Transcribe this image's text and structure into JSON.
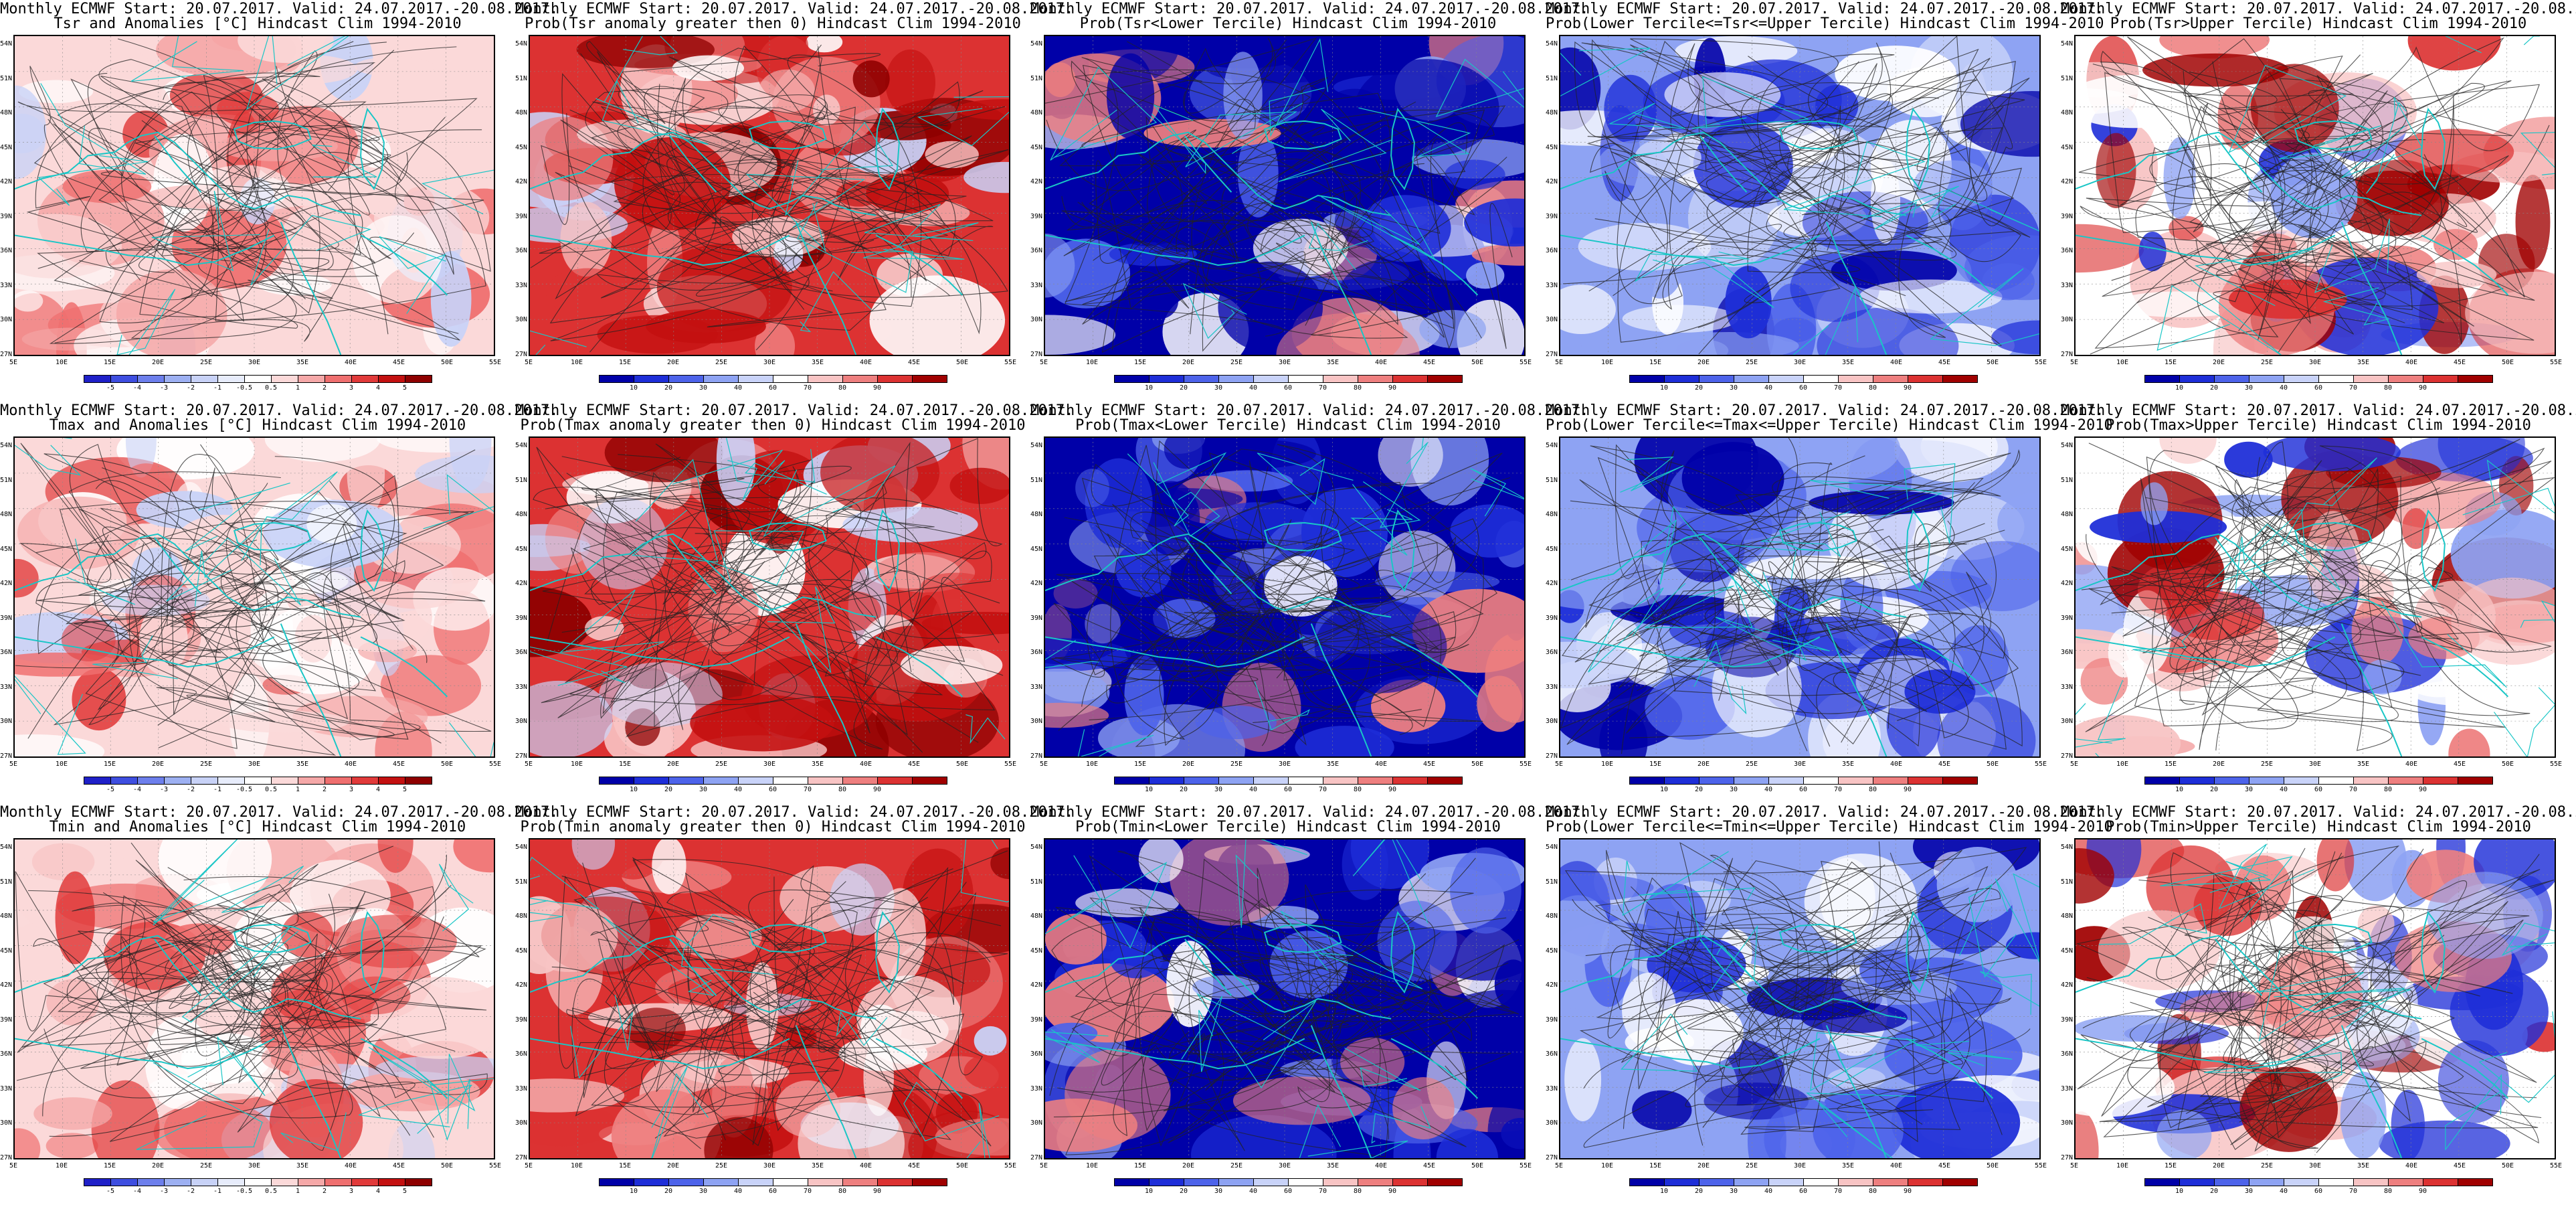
{
  "start_valid": "Monthly ECMWF Start: 20.07.2017. Valid: 24.07.2017.-20.08.2017.",
  "lat_labels": [
    "54N",
    "51N",
    "48N",
    "45N",
    "42N",
    "39N",
    "36N",
    "33N",
    "30N",
    "27N"
  ],
  "lon_labels": [
    "5E",
    "10E",
    "15E",
    "20E",
    "25E",
    "30E",
    "35E",
    "40E",
    "45E",
    "50E",
    "55E"
  ],
  "colorbars": {
    "anom": {
      "ticks": [
        "-5",
        "-4",
        "-3",
        "-2",
        "-1",
        "-0.5",
        "0.5",
        "1",
        "2",
        "3",
        "4",
        "5"
      ],
      "colors": [
        "#1f20c8",
        "#3e4ee0",
        "#6d7fec",
        "#9db0f2",
        "#c8d2f7",
        "#e7ecfb",
        "#ffffff",
        "#fbd9d9",
        "#f5a8a8",
        "#ef6f6f",
        "#e13a3a",
        "#c31010",
        "#8e0000"
      ]
    },
    "prob": {
      "ticks": [
        "10",
        "20",
        "30",
        "40",
        "60",
        "70",
        "80",
        "90"
      ],
      "colors": [
        "#0000a8",
        "#1e2ed8",
        "#4d63ea",
        "#8ea3f3",
        "#c9d3f9",
        "#ffffff",
        "#f8c4c4",
        "#ee7f7f",
        "#dc3232",
        "#a00000"
      ]
    }
  },
  "panels": [
    {
      "id": "r1c1",
      "title": "Tsr and Anomalies [°C] Hindcast Clim 1994-2010",
      "cbar": "anom",
      "fill": "anom"
    },
    {
      "id": "r1c2",
      "title": "Prob(Tsr anomaly greater then 0) Hindcast Clim 1994-2010",
      "cbar": "prob",
      "fill": "red"
    },
    {
      "id": "r1c3",
      "title": "Prob(Tsr<Lower Tercile) Hindcast Clim 1994-2010",
      "cbar": "prob",
      "fill": "blue"
    },
    {
      "id": "r1c4",
      "title": "Prob(Lower Tercile<=Tsr<=Upper Tercile) Hindcast Clim 1994-2010",
      "cbar": "prob",
      "fill": "mid"
    },
    {
      "id": "r1c5",
      "title": "Prob(Tsr>Upper Tercile) Hindcast Clim 1994-2010",
      "cbar": "prob",
      "fill": "upper"
    },
    {
      "id": "r2c1",
      "title": "Tmax and Anomalies [°C] Hindcast Clim 1994-2010",
      "cbar": "anom",
      "fill": "anom"
    },
    {
      "id": "r2c2",
      "title": "Prob(Tmax anomaly greater then 0) Hindcast Clim 1994-2010",
      "cbar": "prob",
      "fill": "red"
    },
    {
      "id": "r2c3",
      "title": "Prob(Tmax<Lower Tercile) Hindcast Clim 1994-2010",
      "cbar": "prob",
      "fill": "blue"
    },
    {
      "id": "r2c4",
      "title": "Prob(Lower Tercile<=Tmax<=Upper Tercile) Hindcast Clim 1994-2010",
      "cbar": "prob",
      "fill": "mid"
    },
    {
      "id": "r2c5",
      "title": "Prob(Tmax>Upper Tercile) Hindcast Clim 1994-2010",
      "cbar": "prob",
      "fill": "upper"
    },
    {
      "id": "r3c1",
      "title": "Tmin and Anomalies [°C] Hindcast Clim 1994-2010",
      "cbar": "anom",
      "fill": "anom"
    },
    {
      "id": "r3c2",
      "title": "Prob(Tmin anomaly greater then 0) Hindcast Clim 1994-2010",
      "cbar": "prob",
      "fill": "red"
    },
    {
      "id": "r3c3",
      "title": "Prob(Tmin<Lower Tercile) Hindcast Clim 1994-2010",
      "cbar": "prob",
      "fill": "blue"
    },
    {
      "id": "r3c4",
      "title": "Prob(Lower Tercile<=Tmin<=Upper Tercile) Hindcast Clim 1994-2010",
      "cbar": "prob",
      "fill": "mid"
    },
    {
      "id": "r3c5",
      "title": "Prob(Tmin>Upper Tercile) Hindcast Clim 1994-2010",
      "cbar": "prob",
      "fill": "upper"
    }
  ]
}
